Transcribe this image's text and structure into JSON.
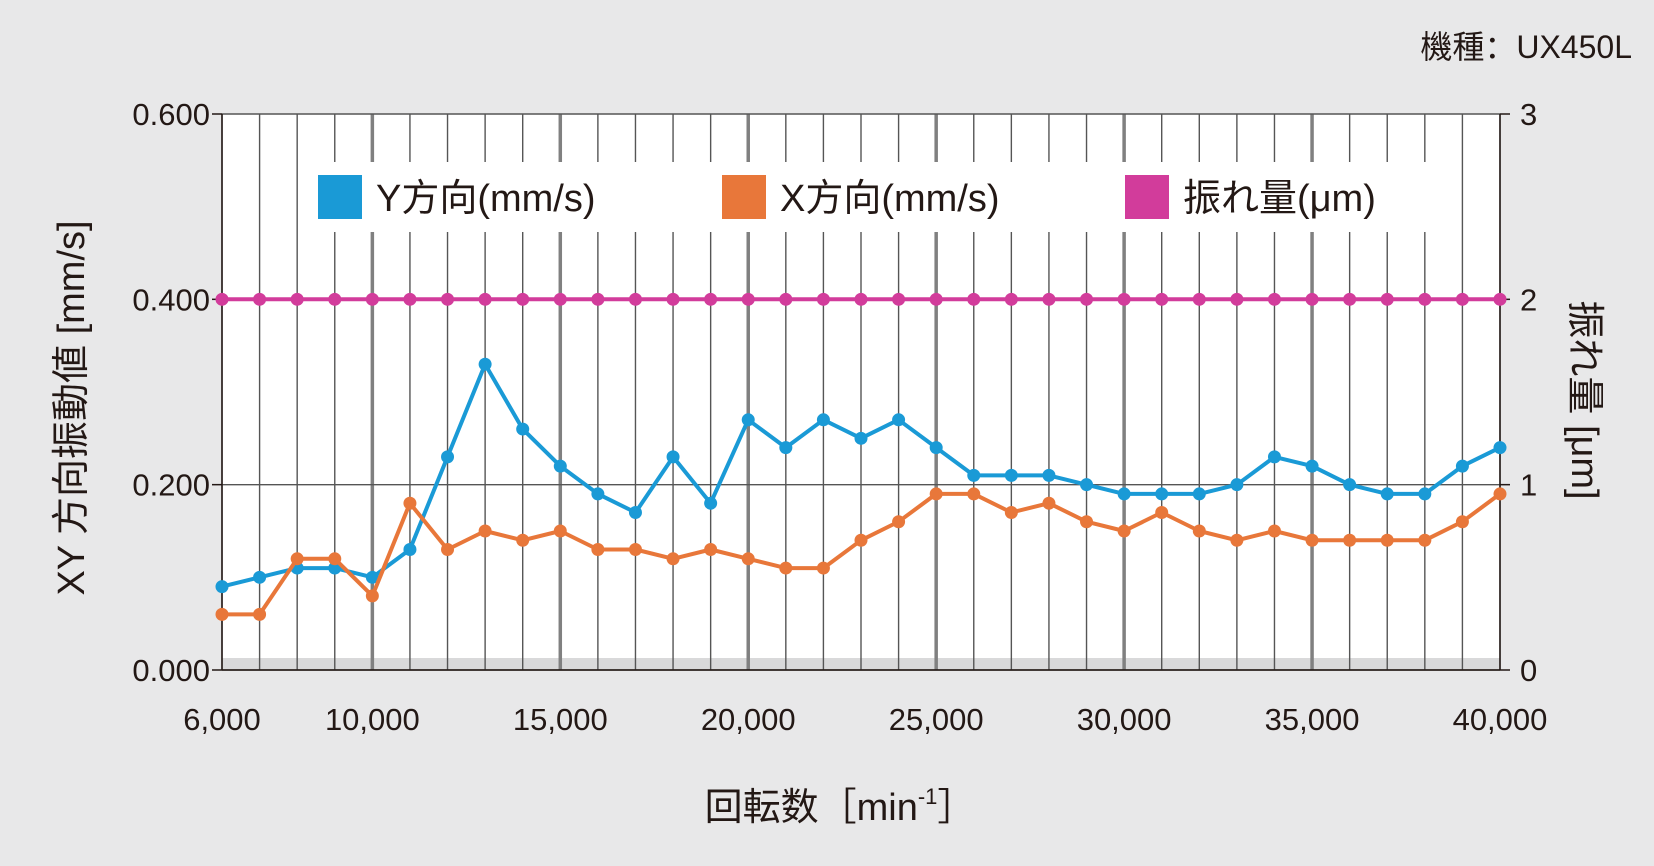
{
  "model_label": "機種：UX450L",
  "colors": {
    "y_series": "#1a9ad6",
    "x_series": "#e8773a",
    "runout": "#d23c9b",
    "grid_minor": "#555555",
    "grid_major": "#808080",
    "plot_bg": "#ffffff",
    "page_bg": "#e8e8e9"
  },
  "chart_data": {
    "type": "line",
    "xlabel": "回転数［min",
    "xlabel_sup": "-1",
    "xlabel_close": "］",
    "ylabel": "XY 方向振動値 [mm/s]",
    "y2label": "振れ量 [μm]",
    "xlim": [
      6000,
      40000
    ],
    "ylim": [
      0,
      0.6
    ],
    "y2lim": [
      0,
      3
    ],
    "x_ticks": [
      6000,
      10000,
      15000,
      20000,
      25000,
      30000,
      35000,
      40000
    ],
    "x_tick_labels": [
      "6,000",
      "10,000",
      "15,000",
      "20,000",
      "25,000",
      "30,000",
      "35,000",
      "40,000"
    ],
    "y_ticks": [
      0,
      0.2,
      0.4,
      0.6
    ],
    "y_tick_labels": [
      "0.000",
      "0.200",
      "0.400",
      "0.600"
    ],
    "y2_ticks": [
      0,
      1,
      2,
      3
    ],
    "y2_tick_labels": [
      "0",
      "1",
      "2",
      "3"
    ],
    "grid": true,
    "legend_position": "top",
    "x": [
      6000,
      7000,
      8000,
      9000,
      10000,
      11000,
      12000,
      13000,
      14000,
      15000,
      16000,
      17000,
      18000,
      19000,
      20000,
      21000,
      22000,
      23000,
      24000,
      25000,
      26000,
      27000,
      28000,
      29000,
      30000,
      31000,
      32000,
      33000,
      34000,
      35000,
      36000,
      37000,
      38000,
      39000,
      40000
    ],
    "series": [
      {
        "name": "Y方向(mm/s)",
        "axis": "left",
        "color": "#1a9ad6",
        "values": [
          0.09,
          0.1,
          0.11,
          0.11,
          0.1,
          0.13,
          0.23,
          0.33,
          0.26,
          0.22,
          0.19,
          0.17,
          0.23,
          0.18,
          0.27,
          0.24,
          0.27,
          0.25,
          0.27,
          0.24,
          0.21,
          0.21,
          0.21,
          0.2,
          0.19,
          0.19,
          0.19,
          0.2,
          0.23,
          0.22,
          0.2,
          0.19,
          0.19,
          0.22,
          0.24
        ]
      },
      {
        "name": "X方向(mm/s)",
        "axis": "left",
        "color": "#e8773a",
        "values": [
          0.06,
          0.06,
          0.12,
          0.12,
          0.08,
          0.18,
          0.13,
          0.15,
          0.14,
          0.15,
          0.13,
          0.13,
          0.12,
          0.13,
          0.12,
          0.11,
          0.11,
          0.14,
          0.16,
          0.19,
          0.19,
          0.17,
          0.18,
          0.16,
          0.15,
          0.17,
          0.15,
          0.14,
          0.15,
          0.14,
          0.14,
          0.14,
          0.14,
          0.16,
          0.19
        ]
      },
      {
        "name": "振れ量(μm)",
        "axis": "right",
        "color": "#d23c9b",
        "values": [
          2,
          2,
          2,
          2,
          2,
          2,
          2,
          2,
          2,
          2,
          2,
          2,
          2,
          2,
          2,
          2,
          2,
          2,
          2,
          2,
          2,
          2,
          2,
          2,
          2,
          2,
          2,
          2,
          2,
          2,
          2,
          2,
          2,
          2,
          2
        ]
      }
    ]
  }
}
